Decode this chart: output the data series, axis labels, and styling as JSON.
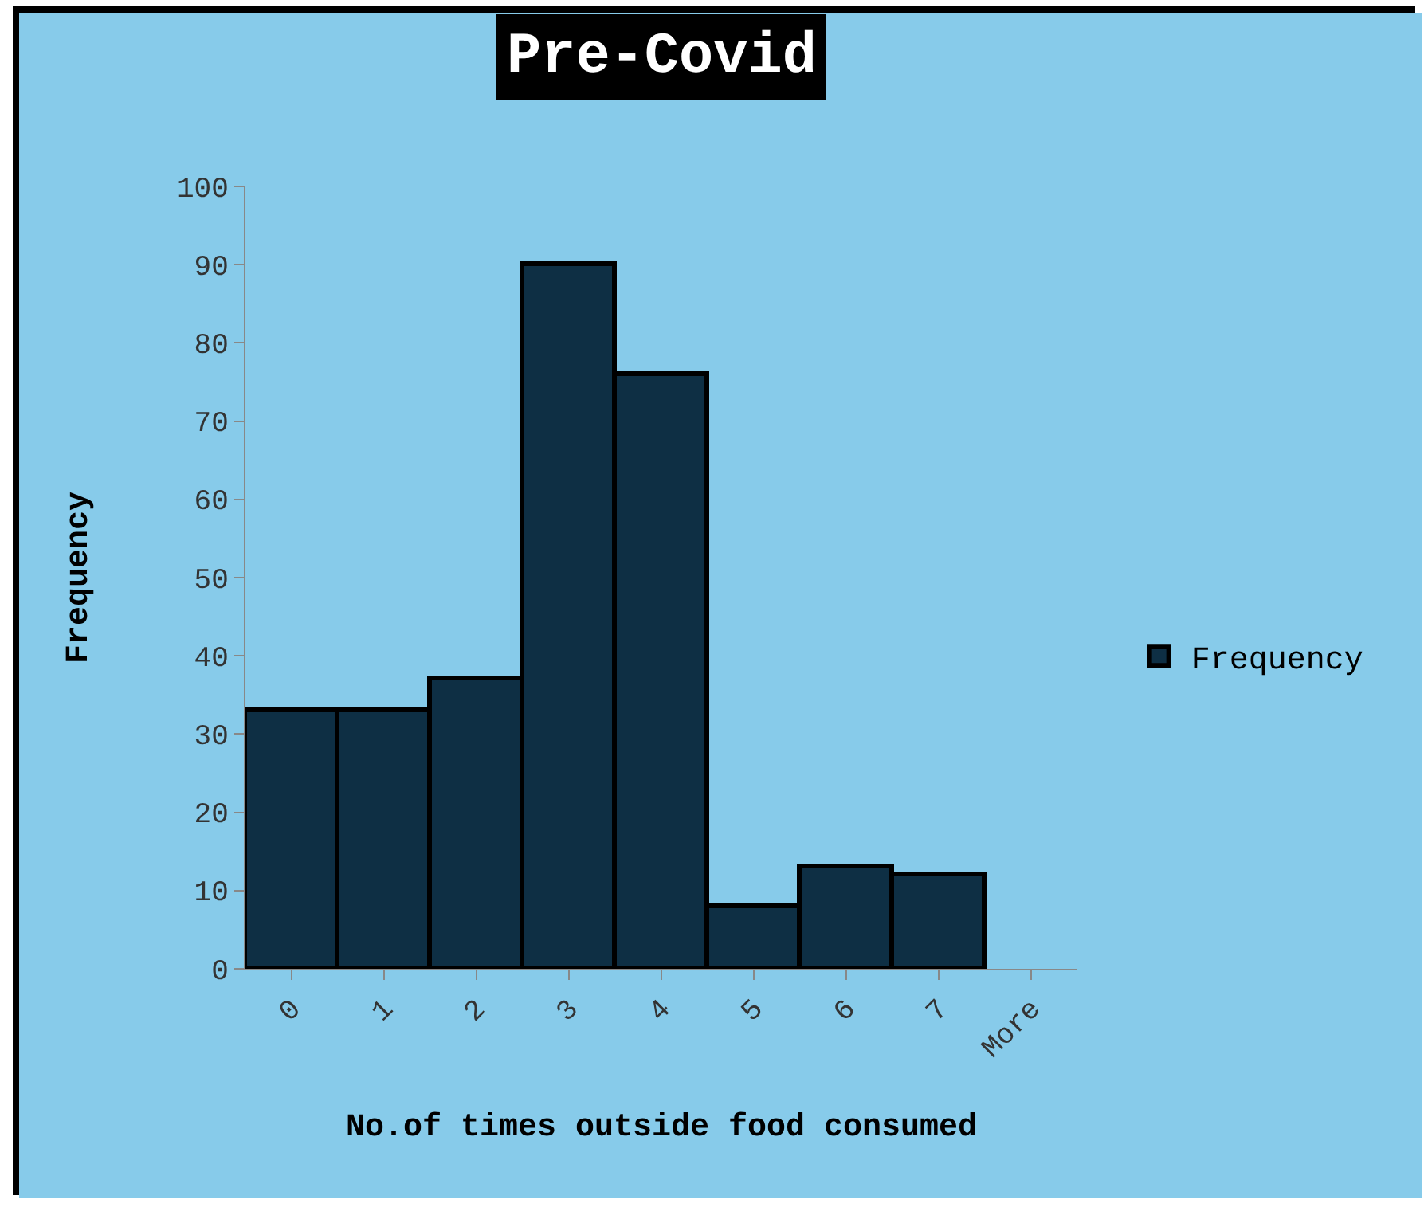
{
  "chart_data": {
    "type": "bar",
    "title": "Pre-Covid",
    "xlabel": "No.of times outside food consumed",
    "ylabel": "Frequency",
    "categories": [
      "0",
      "1",
      "2",
      "3",
      "4",
      "5",
      "6",
      "7",
      "More"
    ],
    "series": [
      {
        "name": "Frequency",
        "color": "#0e2f44",
        "values": [
          33,
          33,
          37,
          90,
          76,
          8,
          13,
          12,
          0
        ]
      }
    ],
    "ylim": [
      0,
      100
    ],
    "yticks": [
      0,
      10,
      20,
      30,
      40,
      50,
      60,
      70,
      80,
      90,
      100
    ],
    "grid": false,
    "legend": "right"
  }
}
